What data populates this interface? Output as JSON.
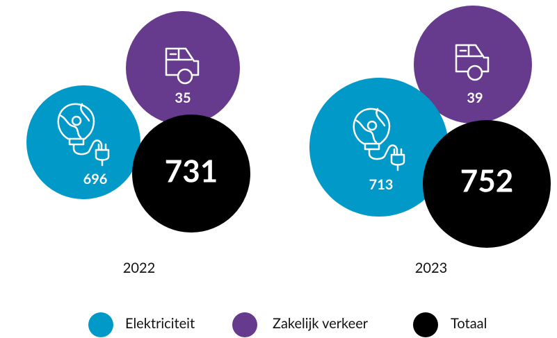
{
  "chart_data": {
    "type": "bubble",
    "categories": [
      "2022",
      "2023"
    ],
    "series": [
      {
        "name": "Elektriciteit",
        "color": "#0099c8",
        "values": [
          696,
          713
        ]
      },
      {
        "name": "Zakelijk verkeer",
        "color": "#663a8c",
        "values": [
          35,
          39
        ]
      },
      {
        "name": "Totaal",
        "color": "#000000",
        "values": [
          731,
          752
        ]
      }
    ]
  }
}
